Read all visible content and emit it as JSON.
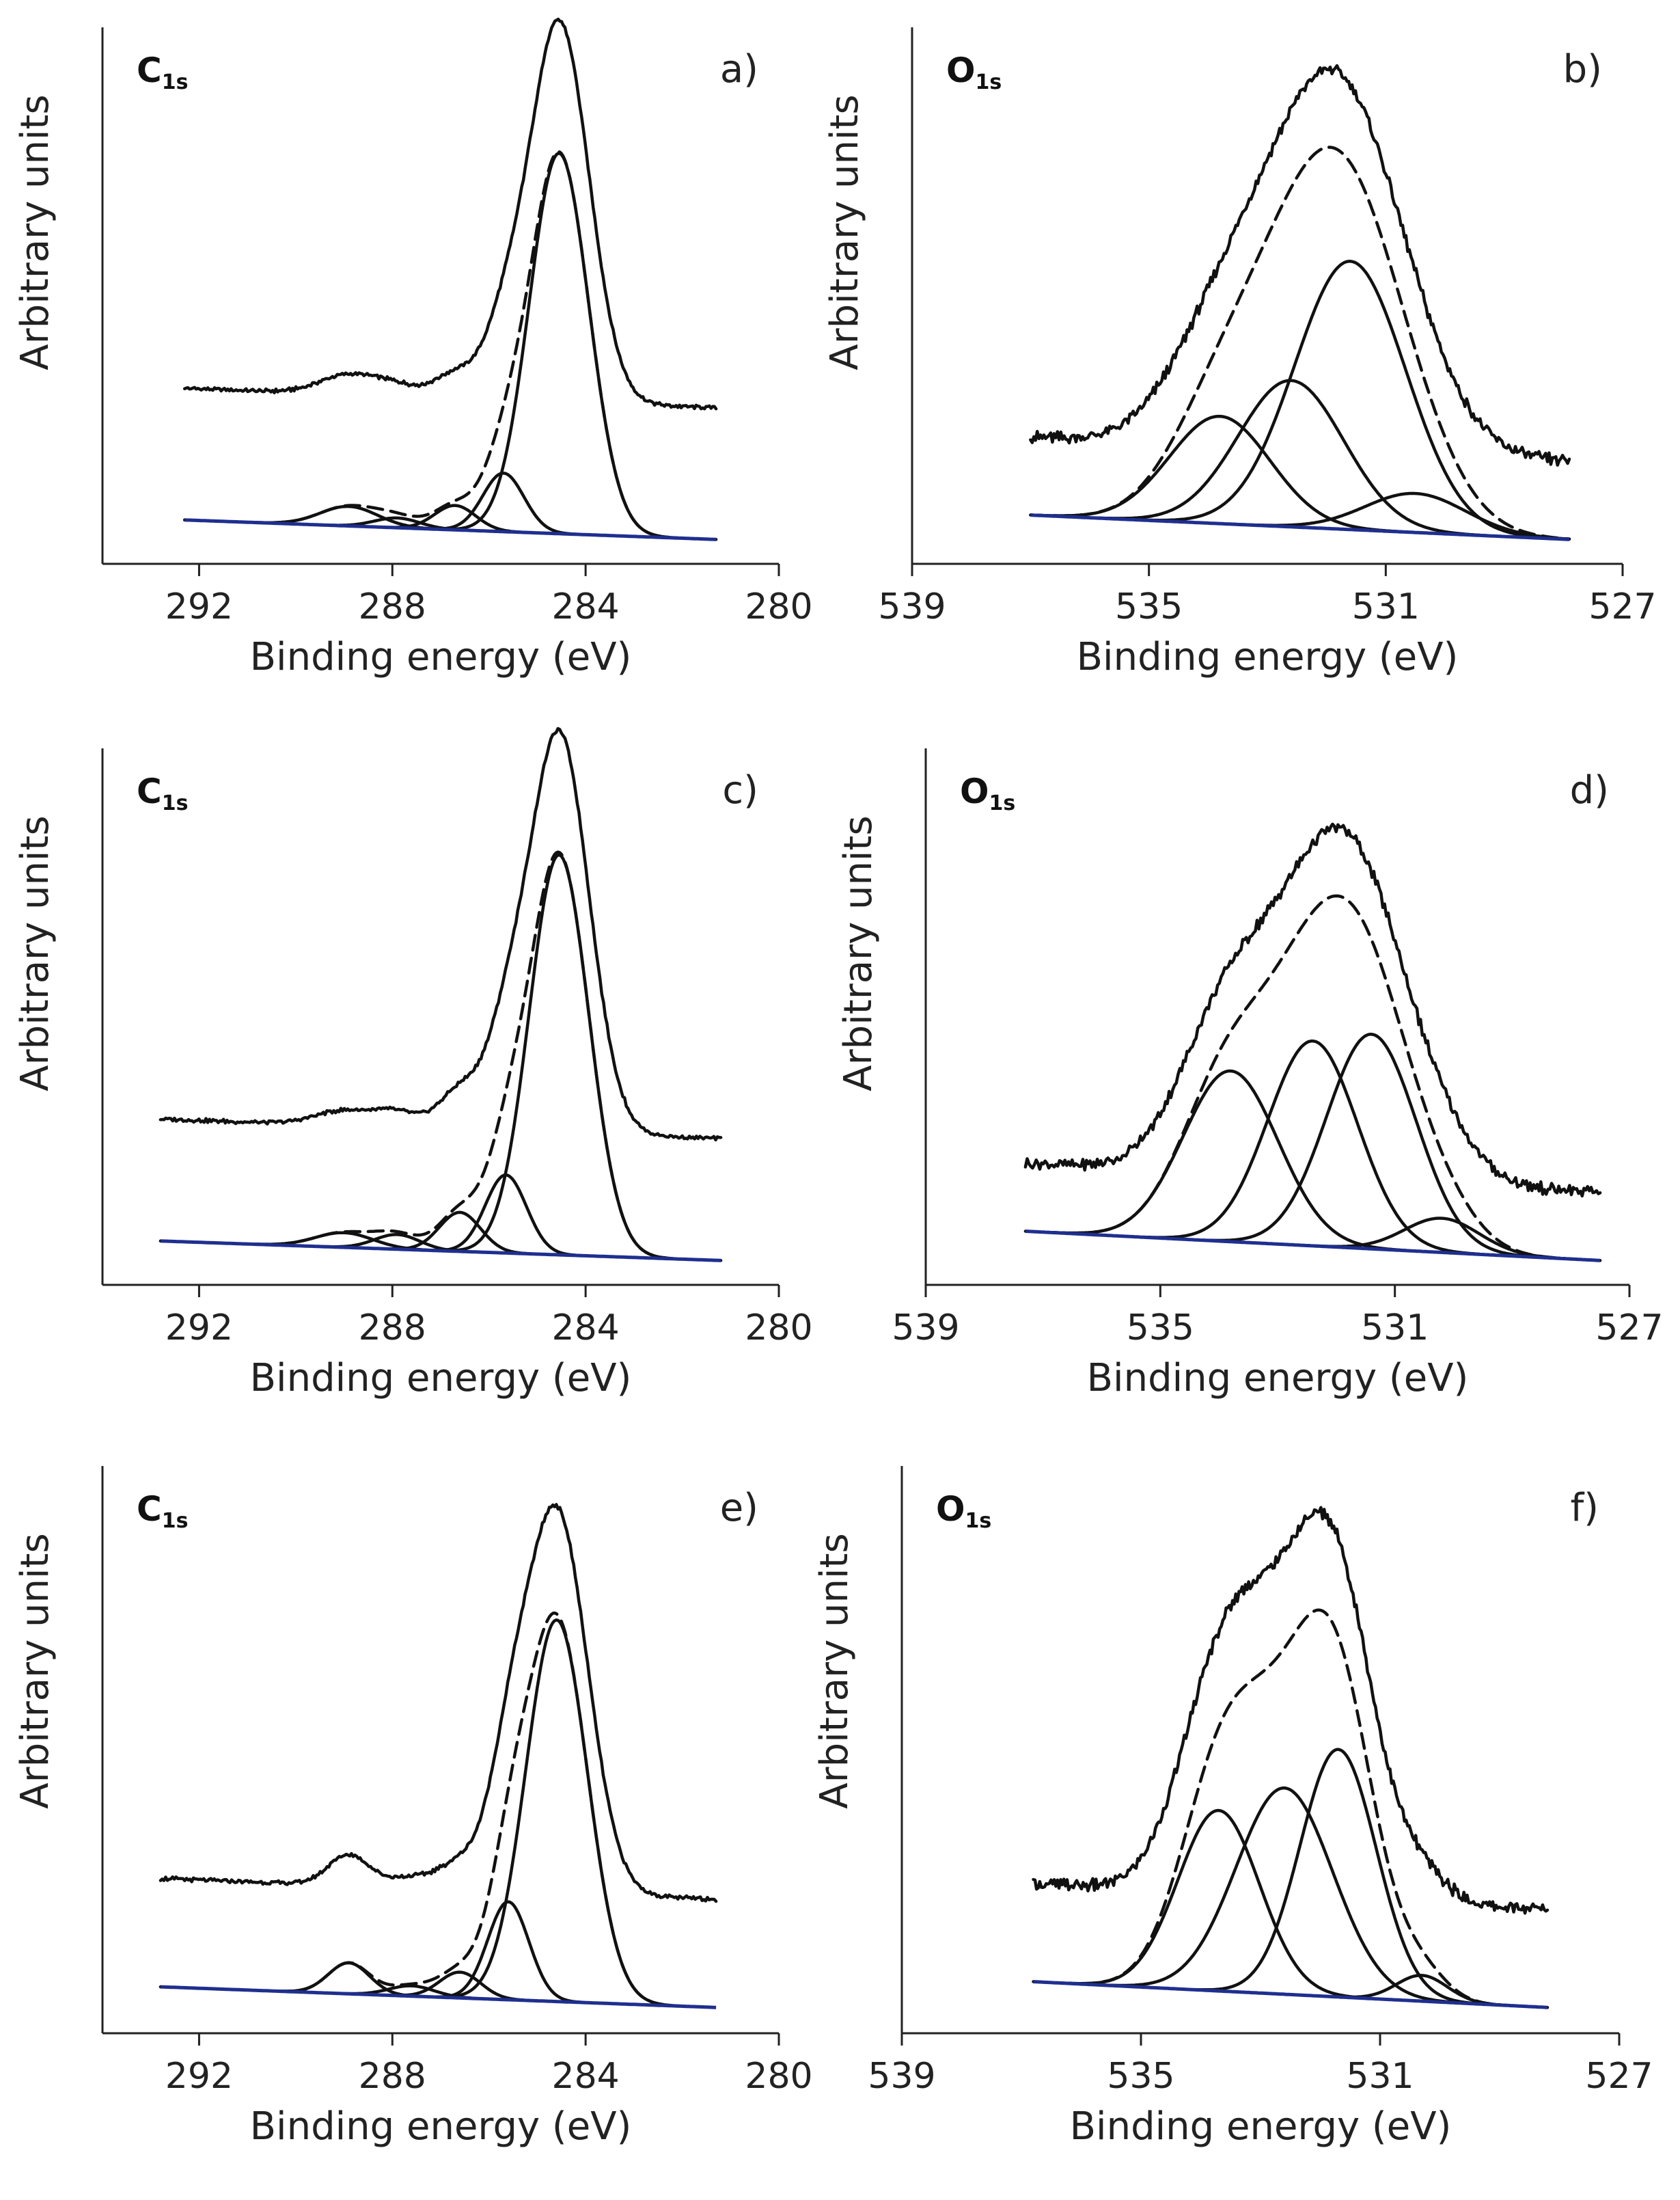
{
  "figure": {
    "colors": {
      "line": "#111111",
      "baseline": "#1f2f8f",
      "axis": "#222222"
    }
  },
  "chart_data": [
    {
      "panel": "a)",
      "type": "line",
      "core": {
        "main": "C",
        "sub": "1s"
      },
      "xlabel": "Binding energy (eV)",
      "ylabel": "Arbitrary units",
      "xlim": [
        294,
        280
      ],
      "ylim": [
        -0.05,
        1.05
      ],
      "xticks": [
        292,
        288,
        284,
        280
      ],
      "x_range": [
        292.3,
        281.3
      ],
      "background": {
        "start": 0.04,
        "end": 0.0
      },
      "envelope_offset": 0.27,
      "noise": 0.004,
      "components": [
        {
          "center": 284.55,
          "height": 0.78,
          "fwhm": 1.45
        },
        {
          "center": 285.7,
          "height": 0.12,
          "fwhm": 1.0
        },
        {
          "center": 286.7,
          "height": 0.05,
          "fwhm": 1.0
        },
        {
          "center": 287.9,
          "height": 0.02,
          "fwhm": 1.1
        },
        {
          "center": 288.9,
          "height": 0.04,
          "fwhm": 1.4
        }
      ]
    },
    {
      "panel": "b)",
      "type": "line",
      "core": {
        "main": "O",
        "sub": "1s"
      },
      "xlabel": "Binding energy (eV)",
      "ylabel": "Arbitrary units",
      "xlim": [
        539,
        527
      ],
      "ylim": [
        -0.05,
        1.05
      ],
      "xticks": [
        539,
        535,
        531,
        527
      ],
      "x_range": [
        537.0,
        527.9
      ],
      "background": {
        "start": 0.05,
        "end": 0.0
      },
      "envelope_offset": 0.16,
      "noise": 0.012,
      "components": [
        {
          "center": 531.6,
          "height": 0.55,
          "fwhm": 2.2
        },
        {
          "center": 532.6,
          "height": 0.3,
          "fwhm": 2.1
        },
        {
          "center": 533.8,
          "height": 0.22,
          "fwhm": 2.0
        },
        {
          "center": 530.5,
          "height": 0.08,
          "fwhm": 2.0
        }
      ]
    },
    {
      "panel": "c)",
      "type": "line",
      "core": {
        "main": "C",
        "sub": "1s"
      },
      "xlabel": "Binding energy (eV)",
      "ylabel": "Arbitrary units",
      "xlim": [
        294,
        280
      ],
      "ylim": [
        -0.05,
        1.05
      ],
      "xticks": [
        292,
        288,
        284,
        280
      ],
      "x_range": [
        292.8,
        281.2
      ],
      "background": {
        "start": 0.04,
        "end": 0.0
      },
      "envelope_offset": 0.25,
      "noise": 0.004,
      "components": [
        {
          "center": 284.55,
          "height": 0.82,
          "fwhm": 1.45
        },
        {
          "center": 285.65,
          "height": 0.16,
          "fwhm": 1.0
        },
        {
          "center": 286.6,
          "height": 0.08,
          "fwhm": 1.0
        },
        {
          "center": 287.9,
          "height": 0.03,
          "fwhm": 1.1
        },
        {
          "center": 289.0,
          "height": 0.03,
          "fwhm": 1.4
        }
      ]
    },
    {
      "panel": "d)",
      "type": "line",
      "core": {
        "main": "O",
        "sub": "1s"
      },
      "xlabel": "Binding energy (eV)",
      "ylabel": "Arbitrary units",
      "xlim": [
        539,
        527
      ],
      "ylim": [
        -0.05,
        1.05
      ],
      "xticks": [
        539,
        535,
        531,
        527
      ],
      "x_range": [
        537.3,
        527.5
      ],
      "background": {
        "start": 0.06,
        "end": 0.0
      },
      "envelope_offset": 0.14,
      "noise": 0.012,
      "components": [
        {
          "center": 531.4,
          "height": 0.44,
          "fwhm": 1.8
        },
        {
          "center": 532.4,
          "height": 0.42,
          "fwhm": 1.8
        },
        {
          "center": 533.8,
          "height": 0.35,
          "fwhm": 1.9
        },
        {
          "center": 530.2,
          "height": 0.07,
          "fwhm": 1.5
        }
      ]
    },
    {
      "panel": "e)",
      "type": "line",
      "core": {
        "main": "C",
        "sub": "1s"
      },
      "xlabel": "Binding energy (eV)",
      "ylabel": "Arbitrary units",
      "xlim": [
        294,
        280
      ],
      "ylim": [
        -0.05,
        1.05
      ],
      "xticks": [
        292,
        288,
        284,
        280
      ],
      "x_range": [
        292.8,
        281.3
      ],
      "background": {
        "start": 0.04,
        "end": 0.0
      },
      "envelope_offset": 0.21,
      "noise": 0.004,
      "components": [
        {
          "center": 284.6,
          "height": 0.74,
          "fwhm": 1.5
        },
        {
          "center": 285.6,
          "height": 0.19,
          "fwhm": 1.0
        },
        {
          "center": 286.6,
          "height": 0.05,
          "fwhm": 1.0
        },
        {
          "center": 287.6,
          "height": 0.02,
          "fwhm": 1.1
        },
        {
          "center": 288.9,
          "height": 0.06,
          "fwhm": 1.0
        }
      ]
    },
    {
      "panel": "f)",
      "type": "line",
      "core": {
        "main": "O",
        "sub": "1s"
      },
      "xlabel": "Binding energy (eV)",
      "ylabel": "Arbitrary units",
      "xlim": [
        539,
        527
      ],
      "ylim": [
        -0.05,
        1.05
      ],
      "xticks": [
        539,
        535,
        531,
        527
      ],
      "x_range": [
        536.8,
        528.2
      ],
      "background": {
        "start": 0.05,
        "end": 0.0
      },
      "envelope_offset": 0.19,
      "noise": 0.012,
      "components": [
        {
          "center": 531.7,
          "height": 0.48,
          "fwhm": 1.5
        },
        {
          "center": 532.6,
          "height": 0.4,
          "fwhm": 1.9
        },
        {
          "center": 533.7,
          "height": 0.35,
          "fwhm": 1.6
        },
        {
          "center": 530.3,
          "height": 0.05,
          "fwhm": 1.0
        }
      ]
    }
  ]
}
